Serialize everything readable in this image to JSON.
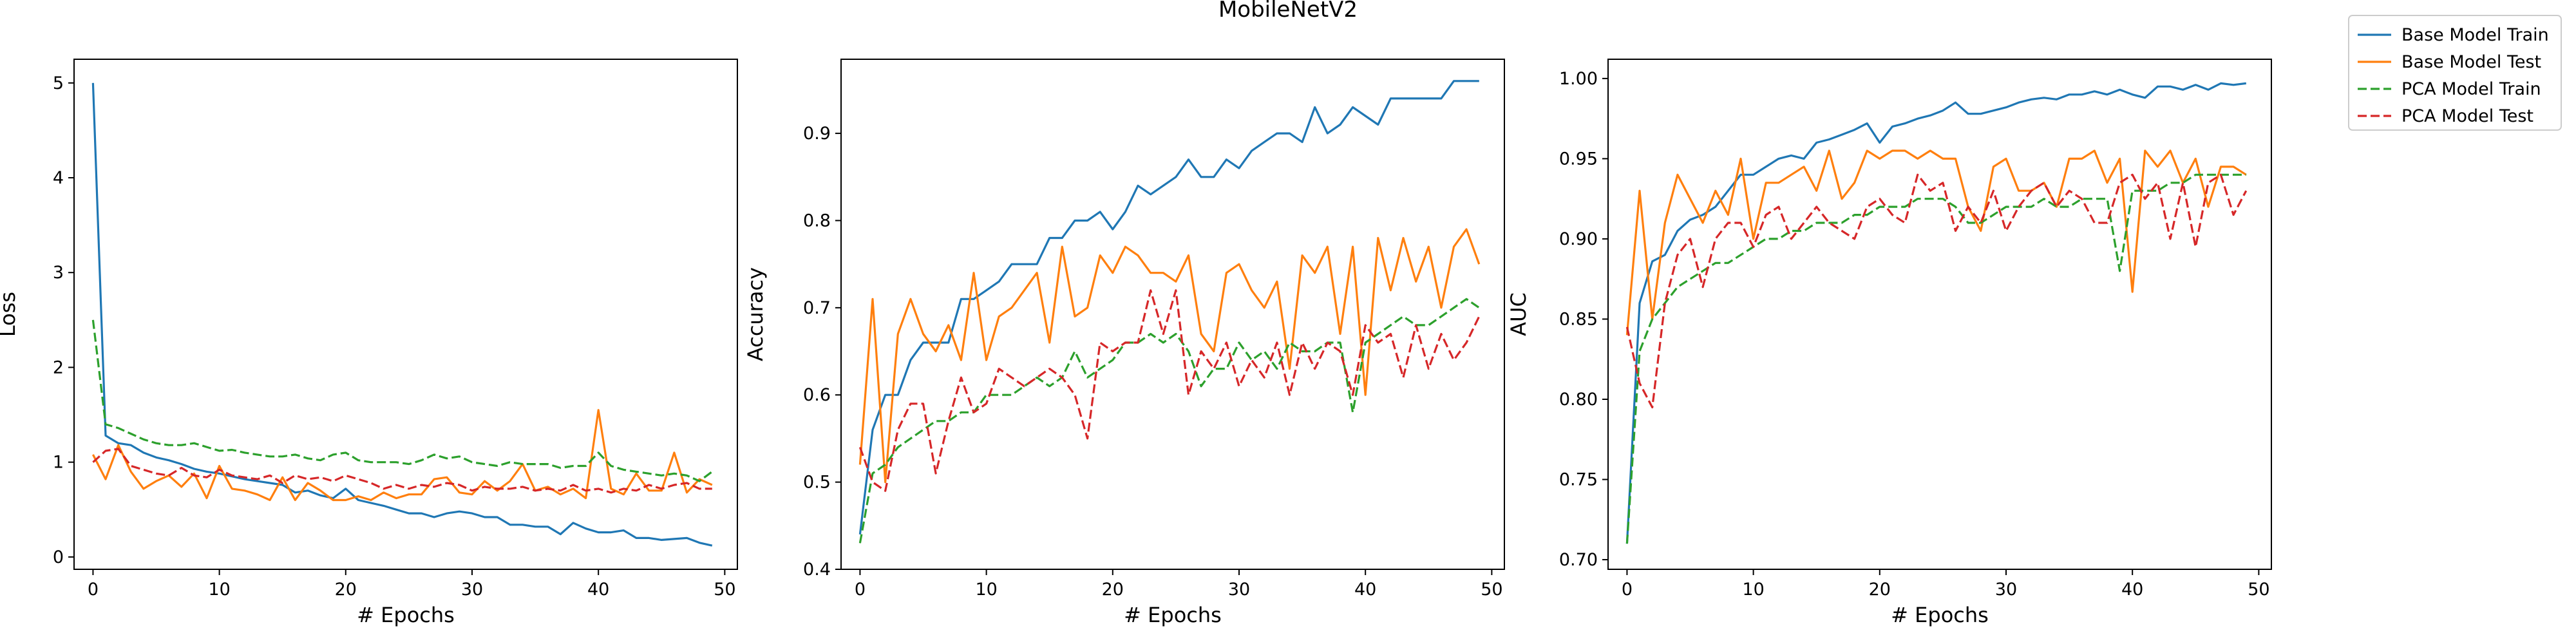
{
  "figure": {
    "title": "MobileNetV2"
  },
  "legend": {
    "placement": "top-right, outside plots",
    "entries": [
      {
        "label": "Base Model Train",
        "color": "#1f77b4",
        "style": "solid"
      },
      {
        "label": "Base Model Test",
        "color": "#ff7f0e",
        "style": "solid"
      },
      {
        "label": "PCA Model Train",
        "color": "#2ca02c",
        "style": "dashed"
      },
      {
        "label": "PCA Model Test",
        "color": "#d62728",
        "style": "dashed"
      }
    ]
  },
  "chart_data": [
    {
      "type": "line",
      "xlabel": "# Epochs",
      "ylabel": "Loss",
      "xlim": [
        -1.5,
        51
      ],
      "ylim": [
        -0.13,
        5.25
      ],
      "xticks": [
        0,
        10,
        20,
        30,
        40,
        50
      ],
      "yticks": [
        0,
        1,
        2,
        3,
        4,
        5
      ],
      "grid": false,
      "x": [
        0,
        1,
        2,
        3,
        4,
        5,
        6,
        7,
        8,
        9,
        10,
        11,
        12,
        13,
        14,
        15,
        16,
        17,
        18,
        19,
        20,
        21,
        22,
        23,
        24,
        25,
        26,
        27,
        28,
        29,
        30,
        31,
        32,
        33,
        34,
        35,
        36,
        37,
        38,
        39,
        40,
        41,
        42,
        43,
        44,
        45,
        46,
        47,
        48,
        49
      ],
      "series": [
        {
          "name": "Base Model Train",
          "color": "#1f77b4",
          "dash": "solid",
          "values": [
            5.0,
            1.28,
            1.2,
            1.18,
            1.1,
            1.05,
            1.02,
            0.98,
            0.93,
            0.9,
            0.88,
            0.85,
            0.82,
            0.8,
            0.78,
            0.76,
            0.68,
            0.7,
            0.65,
            0.62,
            0.72,
            0.6,
            0.57,
            0.54,
            0.5,
            0.46,
            0.46,
            0.42,
            0.46,
            0.48,
            0.46,
            0.42,
            0.42,
            0.34,
            0.34,
            0.32,
            0.32,
            0.24,
            0.36,
            0.3,
            0.26,
            0.26,
            0.28,
            0.2,
            0.2,
            0.18,
            0.19,
            0.2,
            0.15,
            0.12
          ]
        },
        {
          "name": "Base Model Test",
          "color": "#ff7f0e",
          "dash": "solid",
          "values": [
            1.08,
            0.82,
            1.18,
            0.9,
            0.72,
            0.8,
            0.86,
            0.74,
            0.88,
            0.62,
            0.96,
            0.72,
            0.7,
            0.66,
            0.6,
            0.84,
            0.6,
            0.78,
            0.7,
            0.6,
            0.6,
            0.64,
            0.6,
            0.68,
            0.62,
            0.66,
            0.66,
            0.82,
            0.84,
            0.68,
            0.66,
            0.8,
            0.7,
            0.8,
            0.98,
            0.7,
            0.74,
            0.66,
            0.72,
            0.62,
            1.55,
            0.72,
            0.66,
            0.88,
            0.7,
            0.7,
            1.1,
            0.68,
            0.82,
            0.76
          ]
        },
        {
          "name": "PCA Model Train",
          "color": "#2ca02c",
          "dash": "dashed",
          "values": [
            2.5,
            1.4,
            1.36,
            1.3,
            1.24,
            1.2,
            1.18,
            1.18,
            1.2,
            1.16,
            1.12,
            1.13,
            1.1,
            1.08,
            1.06,
            1.06,
            1.08,
            1.04,
            1.02,
            1.08,
            1.1,
            1.02,
            1.0,
            1.0,
            1.0,
            0.98,
            1.02,
            1.08,
            1.04,
            1.06,
            1.0,
            0.98,
            0.96,
            1.0,
            0.98,
            0.98,
            0.98,
            0.94,
            0.96,
            0.96,
            1.1,
            0.96,
            0.92,
            0.9,
            0.88,
            0.86,
            0.88,
            0.86,
            0.8,
            0.9
          ]
        },
        {
          "name": "PCA Model Test",
          "color": "#d62728",
          "dash": "dashed",
          "values": [
            1.0,
            1.12,
            1.14,
            0.96,
            0.92,
            0.88,
            0.86,
            0.94,
            0.86,
            0.84,
            0.92,
            0.86,
            0.84,
            0.82,
            0.86,
            0.78,
            0.86,
            0.82,
            0.84,
            0.8,
            0.86,
            0.82,
            0.78,
            0.72,
            0.76,
            0.72,
            0.76,
            0.74,
            0.78,
            0.76,
            0.7,
            0.74,
            0.72,
            0.72,
            0.74,
            0.7,
            0.72,
            0.7,
            0.76,
            0.7,
            0.72,
            0.68,
            0.72,
            0.7,
            0.76,
            0.72,
            0.76,
            0.78,
            0.72,
            0.72
          ]
        }
      ]
    },
    {
      "type": "line",
      "xlabel": "# Epochs",
      "ylabel": "Accuracy",
      "xlim": [
        -1.5,
        51
      ],
      "ylim": [
        0.4,
        0.985
      ],
      "xticks": [
        0,
        10,
        20,
        30,
        40,
        50
      ],
      "yticks": [
        0.4,
        0.5,
        0.6,
        0.7,
        0.8,
        0.9
      ],
      "grid": false,
      "x": [
        0,
        1,
        2,
        3,
        4,
        5,
        6,
        7,
        8,
        9,
        10,
        11,
        12,
        13,
        14,
        15,
        16,
        17,
        18,
        19,
        20,
        21,
        22,
        23,
        24,
        25,
        26,
        27,
        28,
        29,
        30,
        31,
        32,
        33,
        34,
        35,
        36,
        37,
        38,
        39,
        40,
        41,
        42,
        43,
        44,
        45,
        46,
        47,
        48,
        49
      ],
      "series": [
        {
          "name": "Base Model Train",
          "color": "#1f77b4",
          "dash": "solid",
          "values": [
            0.44,
            0.56,
            0.6,
            0.6,
            0.64,
            0.66,
            0.66,
            0.66,
            0.71,
            0.71,
            0.72,
            0.73,
            0.75,
            0.75,
            0.75,
            0.78,
            0.78,
            0.8,
            0.8,
            0.81,
            0.79,
            0.81,
            0.84,
            0.83,
            0.84,
            0.85,
            0.87,
            0.85,
            0.85,
            0.87,
            0.86,
            0.88,
            0.89,
            0.9,
            0.9,
            0.89,
            0.93,
            0.9,
            0.91,
            0.93,
            0.92,
            0.91,
            0.94,
            0.94,
            0.94,
            0.94,
            0.94,
            0.96,
            0.96,
            0.96
          ]
        },
        {
          "name": "Base Model Test",
          "color": "#ff7f0e",
          "dash": "solid",
          "values": [
            0.52,
            0.71,
            0.5,
            0.67,
            0.71,
            0.67,
            0.65,
            0.68,
            0.64,
            0.74,
            0.64,
            0.69,
            0.7,
            0.72,
            0.74,
            0.66,
            0.77,
            0.69,
            0.7,
            0.76,
            0.74,
            0.77,
            0.76,
            0.74,
            0.74,
            0.73,
            0.76,
            0.67,
            0.65,
            0.74,
            0.75,
            0.72,
            0.7,
            0.73,
            0.63,
            0.76,
            0.74,
            0.77,
            0.67,
            0.77,
            0.6,
            0.78,
            0.72,
            0.78,
            0.73,
            0.77,
            0.7,
            0.77,
            0.79,
            0.75
          ]
        },
        {
          "name": "PCA Model Train",
          "color": "#2ca02c",
          "dash": "dashed",
          "values": [
            0.43,
            0.51,
            0.52,
            0.54,
            0.55,
            0.56,
            0.57,
            0.57,
            0.58,
            0.58,
            0.6,
            0.6,
            0.6,
            0.61,
            0.62,
            0.61,
            0.62,
            0.65,
            0.62,
            0.63,
            0.64,
            0.66,
            0.66,
            0.67,
            0.66,
            0.67,
            0.65,
            0.61,
            0.63,
            0.63,
            0.66,
            0.64,
            0.65,
            0.63,
            0.66,
            0.65,
            0.65,
            0.66,
            0.66,
            0.58,
            0.66,
            0.67,
            0.68,
            0.69,
            0.68,
            0.68,
            0.69,
            0.7,
            0.71,
            0.7
          ]
        },
        {
          "name": "PCA Model Test",
          "color": "#d62728",
          "dash": "dashed",
          "values": [
            0.54,
            0.5,
            0.49,
            0.56,
            0.59,
            0.59,
            0.51,
            0.57,
            0.62,
            0.58,
            0.59,
            0.63,
            0.62,
            0.61,
            0.62,
            0.63,
            0.62,
            0.6,
            0.55,
            0.66,
            0.65,
            0.66,
            0.66,
            0.72,
            0.67,
            0.72,
            0.6,
            0.65,
            0.63,
            0.66,
            0.61,
            0.64,
            0.62,
            0.66,
            0.6,
            0.66,
            0.63,
            0.66,
            0.65,
            0.6,
            0.68,
            0.66,
            0.67,
            0.62,
            0.68,
            0.63,
            0.67,
            0.64,
            0.66,
            0.69
          ]
        }
      ]
    },
    {
      "type": "line",
      "xlabel": "# Epochs",
      "ylabel": "AUC",
      "xlim": [
        -1.5,
        51
      ],
      "ylim": [
        0.694,
        1.012
      ],
      "xticks": [
        0,
        10,
        20,
        30,
        40,
        50
      ],
      "yticks": [
        0.7,
        0.75,
        0.8,
        0.85,
        0.9,
        0.95,
        1.0
      ],
      "grid": false,
      "x": [
        0,
        1,
        2,
        3,
        4,
        5,
        6,
        7,
        8,
        9,
        10,
        11,
        12,
        13,
        14,
        15,
        16,
        17,
        18,
        19,
        20,
        21,
        22,
        23,
        24,
        25,
        26,
        27,
        28,
        29,
        30,
        31,
        32,
        33,
        34,
        35,
        36,
        37,
        38,
        39,
        40,
        41,
        42,
        43,
        44,
        45,
        46,
        47,
        48,
        49
      ],
      "series": [
        {
          "name": "Base Model Train",
          "color": "#1f77b4",
          "dash": "solid",
          "values": [
            0.71,
            0.86,
            0.886,
            0.89,
            0.905,
            0.912,
            0.915,
            0.92,
            0.93,
            0.94,
            0.94,
            0.945,
            0.95,
            0.952,
            0.95,
            0.96,
            0.962,
            0.965,
            0.968,
            0.972,
            0.96,
            0.97,
            0.972,
            0.975,
            0.977,
            0.98,
            0.985,
            0.978,
            0.978,
            0.98,
            0.982,
            0.985,
            0.987,
            0.988,
            0.987,
            0.99,
            0.99,
            0.992,
            0.99,
            0.993,
            0.99,
            0.988,
            0.995,
            0.995,
            0.993,
            0.996,
            0.993,
            0.997,
            0.996,
            0.997
          ]
        },
        {
          "name": "Base Model Test",
          "color": "#ff7f0e",
          "dash": "solid",
          "values": [
            0.84,
            0.93,
            0.85,
            0.91,
            0.94,
            0.925,
            0.91,
            0.93,
            0.915,
            0.95,
            0.9,
            0.935,
            0.935,
            0.94,
            0.945,
            0.93,
            0.955,
            0.925,
            0.935,
            0.955,
            0.95,
            0.955,
            0.955,
            0.95,
            0.955,
            0.95,
            0.95,
            0.92,
            0.905,
            0.945,
            0.95,
            0.93,
            0.93,
            0.935,
            0.92,
            0.95,
            0.95,
            0.955,
            0.935,
            0.95,
            0.867,
            0.955,
            0.945,
            0.955,
            0.935,
            0.95,
            0.92,
            0.945,
            0.945,
            0.94
          ]
        },
        {
          "name": "PCA Model Train",
          "color": "#2ca02c",
          "dash": "dashed",
          "values": [
            0.71,
            0.83,
            0.85,
            0.86,
            0.87,
            0.875,
            0.88,
            0.885,
            0.885,
            0.89,
            0.895,
            0.9,
            0.9,
            0.905,
            0.905,
            0.91,
            0.91,
            0.91,
            0.915,
            0.915,
            0.92,
            0.92,
            0.92,
            0.925,
            0.925,
            0.925,
            0.92,
            0.91,
            0.91,
            0.915,
            0.92,
            0.92,
            0.92,
            0.925,
            0.92,
            0.92,
            0.925,
            0.925,
            0.925,
            0.88,
            0.93,
            0.93,
            0.93,
            0.935,
            0.935,
            0.94,
            0.94,
            0.94,
            0.94,
            0.94
          ]
        },
        {
          "name": "PCA Model Test",
          "color": "#d62728",
          "dash": "dashed",
          "values": [
            0.845,
            0.81,
            0.795,
            0.86,
            0.89,
            0.9,
            0.87,
            0.9,
            0.91,
            0.91,
            0.895,
            0.915,
            0.92,
            0.9,
            0.91,
            0.92,
            0.91,
            0.905,
            0.9,
            0.92,
            0.925,
            0.915,
            0.91,
            0.94,
            0.93,
            0.935,
            0.905,
            0.92,
            0.91,
            0.93,
            0.905,
            0.92,
            0.93,
            0.935,
            0.92,
            0.93,
            0.925,
            0.91,
            0.91,
            0.935,
            0.94,
            0.925,
            0.935,
            0.9,
            0.935,
            0.895,
            0.935,
            0.94,
            0.915,
            0.93
          ]
        }
      ]
    }
  ]
}
